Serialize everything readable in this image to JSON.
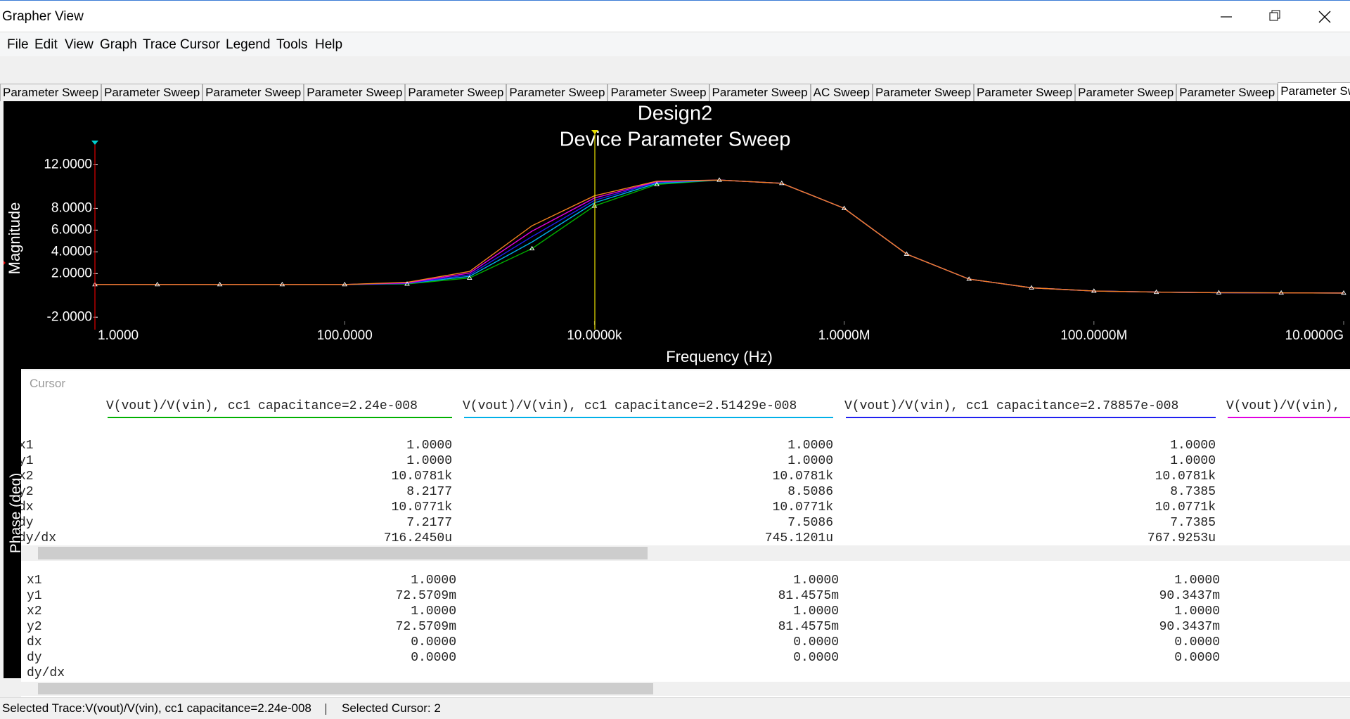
{
  "window": {
    "title": "Grapher View"
  },
  "menu": [
    "File",
    "Edit",
    "View",
    "Graph",
    "Trace",
    "Cursor",
    "Legend",
    "Tools",
    "Help"
  ],
  "tabs": [
    "Parameter Sweep",
    "Parameter Sweep",
    "Parameter Sweep",
    "Parameter Sweep",
    "Parameter Sweep",
    "Parameter Sweep",
    "Parameter Sweep",
    "Parameter Sweep",
    "AC Sweep",
    "Parameter Sweep",
    "Parameter Sweep",
    "Parameter Sweep",
    "Parameter Sweep",
    "Parameter Sweep"
  ],
  "chart_data": {
    "type": "line",
    "title": "Design2",
    "subtitle": "Device Parameter Sweep",
    "x_label": "Frequency (Hz)",
    "y_label": "Magnitude",
    "y2_label": "Phase (deg)",
    "xscale": "log",
    "xlim": [
      1,
      10000000000
    ],
    "ylim": [
      -2.5,
      13
    ],
    "xticks": [
      {
        "value": 1,
        "label": "1.0000"
      },
      {
        "value": 100,
        "label": "100.0000"
      },
      {
        "value": 10000,
        "label": "10.0000k"
      },
      {
        "value": 1000000,
        "label": "1.0000M"
      },
      {
        "value": 100000000,
        "label": "100.0000M"
      },
      {
        "value": 10000000000,
        "label": "10.0000G"
      }
    ],
    "yticks": [
      {
        "value": 12,
        "label": "12.0000"
      },
      {
        "value": 8,
        "label": "8.0000"
      },
      {
        "value": 6,
        "label": "6.0000"
      },
      {
        "value": 4,
        "label": "4.0000"
      },
      {
        "value": 2,
        "label": "2.0000"
      },
      {
        "value": -2,
        "label": "-2.0000"
      }
    ],
    "x": [
      1,
      3.162,
      10,
      31.62,
      100,
      316.2,
      1000,
      3162,
      10000,
      31620,
      100000,
      316200,
      1000000,
      3162000,
      10000000,
      31620000,
      100000000,
      316200000,
      1000000000,
      3162000000,
      10000000000
    ],
    "series": [
      {
        "color": "#00b000",
        "values": [
          1,
          1,
          1,
          1,
          1,
          1.05,
          1.6,
          4.3,
          8.22,
          10.2,
          10.6,
          10.3,
          8.0,
          3.8,
          1.5,
          0.7,
          0.4,
          0.3,
          0.25,
          0.23,
          0.22
        ]
      },
      {
        "color": "#00b0e8",
        "values": [
          1,
          1,
          1,
          1,
          1,
          1.1,
          1.75,
          4.9,
          8.51,
          10.3,
          10.6,
          10.3,
          8.0,
          3.8,
          1.5,
          0.7,
          0.4,
          0.3,
          0.25,
          0.23,
          0.22
        ]
      },
      {
        "color": "#2020f0",
        "values": [
          1,
          1,
          1,
          1,
          1,
          1.1,
          1.9,
          5.4,
          8.74,
          10.4,
          10.6,
          10.3,
          8.0,
          3.8,
          1.5,
          0.7,
          0.4,
          0.3,
          0.25,
          0.23,
          0.22
        ]
      },
      {
        "color": "#e000e0",
        "values": [
          1,
          1,
          1,
          1,
          1,
          1.15,
          2.05,
          5.9,
          8.95,
          10.45,
          10.6,
          10.3,
          8.0,
          3.8,
          1.5,
          0.7,
          0.4,
          0.3,
          0.25,
          0.23,
          0.22
        ]
      },
      {
        "color": "#f08020",
        "values": [
          1,
          1,
          1,
          1,
          1,
          1.2,
          2.2,
          6.4,
          9.15,
          10.5,
          10.6,
          10.3,
          8.0,
          3.8,
          1.5,
          0.7,
          0.4,
          0.3,
          0.25,
          0.23,
          0.22
        ]
      }
    ],
    "cursors": [
      {
        "x": 1,
        "color": "#e00000"
      },
      {
        "x": 10078.1,
        "color": "#e8e000"
      }
    ]
  },
  "cursor_panel": {
    "title": "Cursor",
    "headers": [
      "V(vout)/V(vin), cc1 capacitance=2.24e-008",
      "V(vout)/V(vin), cc1 capacitance=2.51429e-008",
      "V(vout)/V(vin), cc1 capacitance=2.78857e-008",
      "V(vout)/V(vin),"
    ],
    "magnitude_rows": [
      {
        "label": "x1",
        "values": [
          "1.0000",
          "1.0000",
          "1.0000"
        ]
      },
      {
        "label": "y1",
        "values": [
          "1.0000",
          "1.0000",
          "1.0000"
        ]
      },
      {
        "label": "x2",
        "values": [
          "10.0781k",
          "10.0781k",
          "10.0781k"
        ]
      },
      {
        "label": "y2",
        "values": [
          "8.2177",
          "8.5086",
          "8.7385"
        ]
      },
      {
        "label": "dx",
        "values": [
          "10.0771k",
          "10.0771k",
          "10.0771k"
        ]
      },
      {
        "label": "dy",
        "values": [
          "7.2177",
          "7.5086",
          "7.7385"
        ]
      },
      {
        "label": "dy/dx",
        "values": [
          "716.2450u",
          "745.1201u",
          "767.9253u"
        ]
      }
    ],
    "phase_rows": [
      {
        "label": "x1",
        "values": [
          "1.0000",
          "1.0000",
          "1.0000"
        ]
      },
      {
        "label": "y1",
        "values": [
          "72.5709m",
          "81.4575m",
          "90.3437m"
        ]
      },
      {
        "label": "x2",
        "values": [
          "1.0000",
          "1.0000",
          "1.0000"
        ]
      },
      {
        "label": "y2",
        "values": [
          "72.5709m",
          "81.4575m",
          "90.3437m"
        ]
      },
      {
        "label": "dx",
        "values": [
          "0.0000",
          "0.0000",
          "0.0000"
        ]
      },
      {
        "label": "dy",
        "values": [
          "0.0000",
          "0.0000",
          "0.0000"
        ]
      },
      {
        "label": "dy/dx"
      }
    ]
  },
  "status": {
    "trace": "Selected Trace:V(vout)/V(vin), cc1 capacitance=2.24e-008",
    "cursor": "Selected Cursor: 2"
  }
}
